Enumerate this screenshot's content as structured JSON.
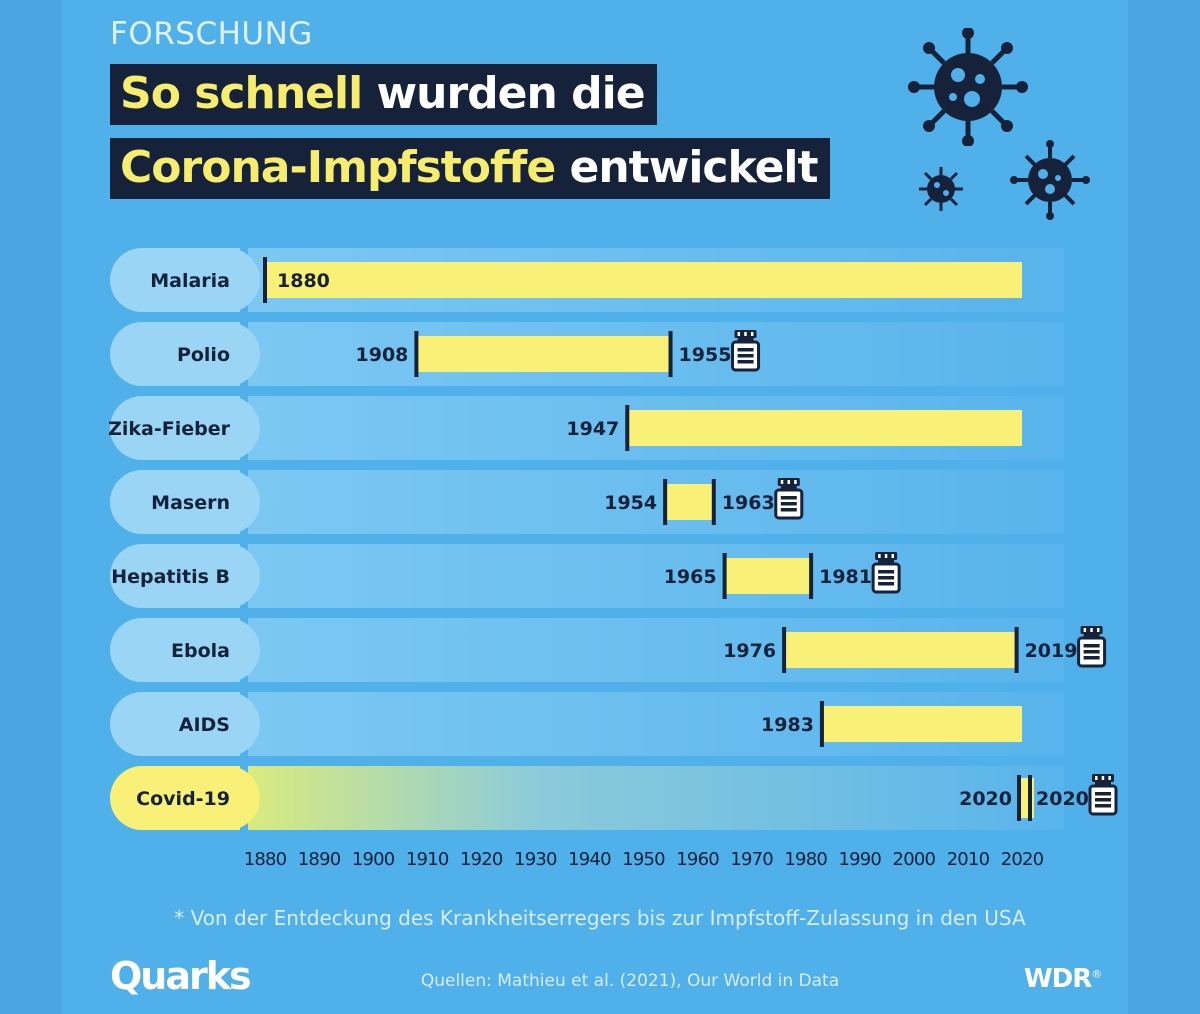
{
  "header": {
    "kicker": "FORSCHUNG",
    "title_line1_highlight": "So schnell",
    "title_line1_rest": " wurden die",
    "title_line2_highlight": "Corona-Impfstoffe",
    "title_line2_rest": " entwickelt"
  },
  "colors": {
    "background": "#4fb0ea",
    "bar": "#f8f077",
    "title_box": "#15223a",
    "highlight_text": "#f6ec6e",
    "row_band": "#70c2f1",
    "label_pill": "#9ad5f6",
    "covid_pill": "#f8f077"
  },
  "chart_data": {
    "type": "bar",
    "orientation": "horizontal-range",
    "xlim": [
      1880,
      2020
    ],
    "x_ticks": [
      1880,
      1890,
      1900,
      1910,
      1920,
      1930,
      1940,
      1950,
      1960,
      1970,
      1980,
      1990,
      2000,
      2010,
      2020
    ],
    "categories": [
      "Malaria",
      "Polio",
      "Zika-Fieber",
      "Masern",
      "Hepatitis B",
      "Ebola",
      "AIDS",
      "Covid-19"
    ],
    "bars": [
      {
        "label": "Malaria",
        "start": 1880,
        "end": null,
        "vaccine": false
      },
      {
        "label": "Polio",
        "start": 1908,
        "end": 1955,
        "vaccine": true
      },
      {
        "label": "Zika-Fieber",
        "start": 1947,
        "end": null,
        "vaccine": false
      },
      {
        "label": "Masern",
        "start": 1954,
        "end": 1963,
        "vaccine": true
      },
      {
        "label": "Hepatitis B",
        "start": 1965,
        "end": 1981,
        "vaccine": true
      },
      {
        "label": "Ebola",
        "start": 1976,
        "end": 2019,
        "vaccine": true
      },
      {
        "label": "AIDS",
        "start": 1983,
        "end": null,
        "vaccine": false
      },
      {
        "label": "Covid-19",
        "start": 2020,
        "end": 2020,
        "vaccine": true,
        "highlight": true
      }
    ]
  },
  "footnote": "* Von der Entdeckung des Krankheitserregers bis zur Impfstoff-Zulassung in den USA",
  "sources": "Quellen: Mathieu et al. (2021), Our World in Data",
  "logos": {
    "left": "Quarks",
    "right": "WDR",
    "right_mark": "®"
  }
}
